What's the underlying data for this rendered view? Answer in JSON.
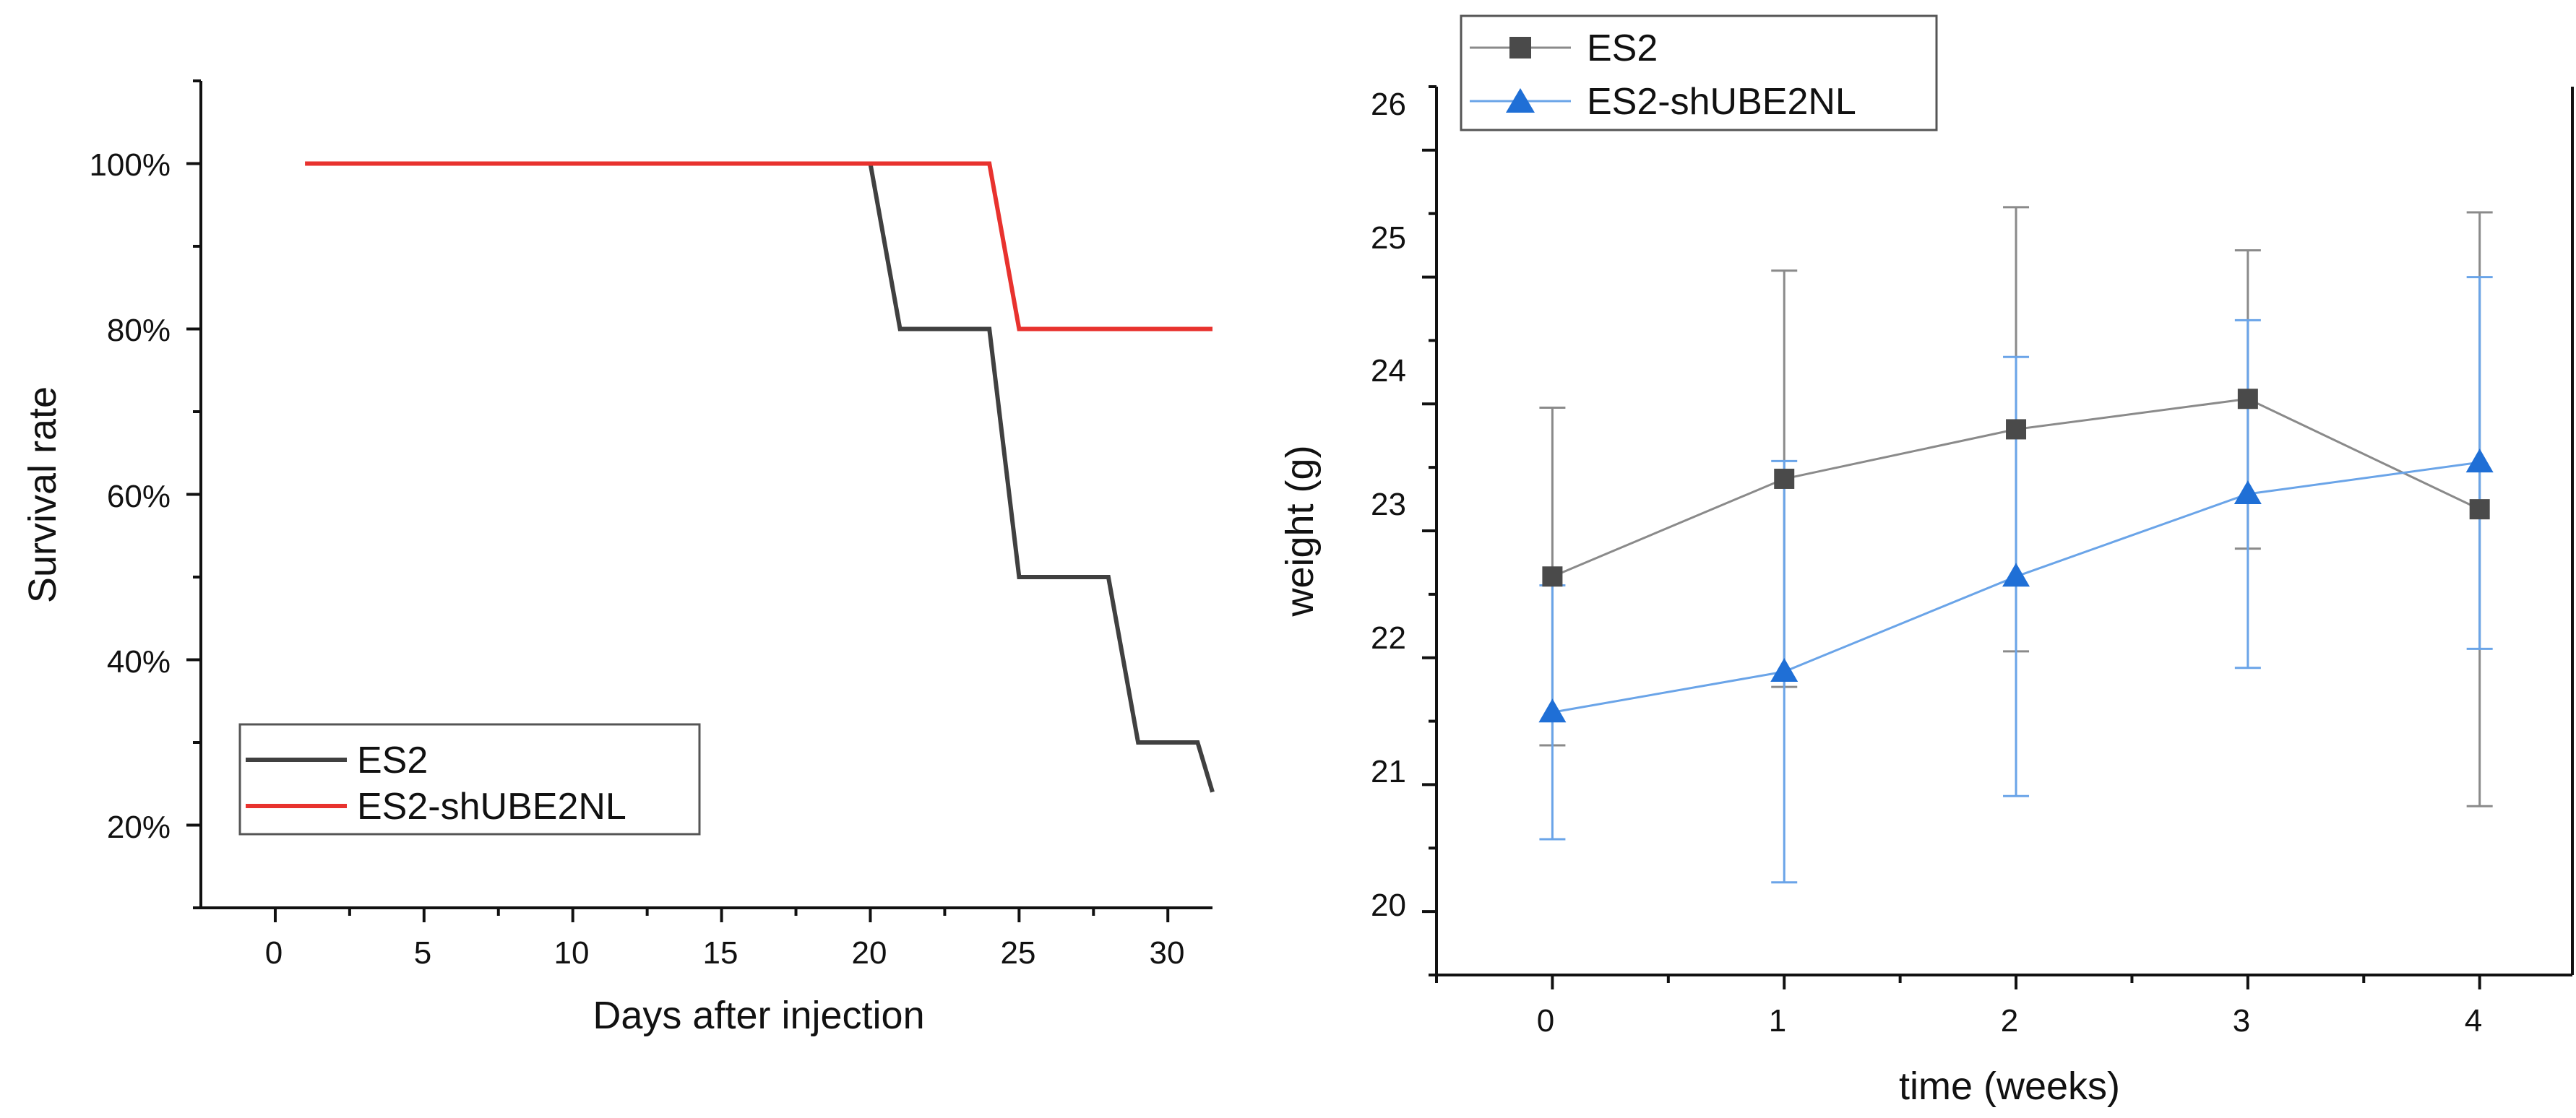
{
  "chart_data": [
    {
      "type": "line",
      "title": "",
      "xlabel": "Days after injection",
      "ylabel": "Survival rate",
      "xlim": [
        -2.5,
        31.5
      ],
      "ylim": [
        0.1,
        1.1
      ],
      "xticks": [
        0,
        5,
        10,
        15,
        20,
        25,
        30
      ],
      "xtick_labels": [
        "0",
        "5",
        "10",
        "15",
        "20",
        "25",
        "30"
      ],
      "yticks": [
        0.2,
        0.4,
        0.6,
        0.8,
        1.0
      ],
      "ytick_labels": [
        "20%",
        "40%",
        "60%",
        "80%",
        "100%"
      ],
      "grid": false,
      "legend": "bottom-left",
      "series": [
        {
          "name": "ES2",
          "color": "#404040",
          "x": [
            20,
            21,
            24,
            25,
            28,
            29,
            31,
            31.5
          ],
          "y": [
            1.0,
            0.8,
            0.8,
            0.5,
            0.5,
            0.3,
            0.3,
            0.24
          ]
        },
        {
          "name": "ES2-shUBE2NL",
          "color": "#e8322e",
          "x": [
            1,
            24,
            25,
            31.5
          ],
          "y": [
            1.0,
            1.0,
            0.8,
            0.8
          ]
        }
      ]
    },
    {
      "type": "line",
      "title": "",
      "xlabel": "time (weeks)",
      "ylabel": "weight (g)",
      "xlim": [
        -0.5,
        4.4
      ],
      "ylim": [
        19.5,
        26.5
      ],
      "xticks": [
        0,
        1,
        2,
        3,
        4
      ],
      "xtick_labels": [
        "0",
        "1",
        "2",
        "3",
        "4"
      ],
      "yticks": [
        20,
        21,
        22,
        23,
        24,
        25,
        26
      ],
      "ytick_labels": [
        "20",
        "21",
        "22",
        "23",
        "24",
        "25",
        "26"
      ],
      "grid": false,
      "legend": "top-left",
      "series": [
        {
          "name": "ES2",
          "color": "#4a4a4a",
          "line_color": "#8a8a8a",
          "marker": "square",
          "x": [
            0,
            1,
            2,
            3,
            4
          ],
          "y": [
            22.64,
            23.41,
            23.8,
            24.04,
            23.17
          ],
          "err_lo": [
            21.31,
            21.77,
            22.05,
            22.86,
            20.83
          ],
          "err_hi": [
            23.97,
            25.05,
            25.55,
            25.21,
            25.51
          ]
        },
        {
          "name": "ES2-shUBE2NL",
          "color": "#1f6fd6",
          "line_color": "#6aa4e8",
          "marker": "triangle",
          "x": [
            0,
            1,
            2,
            3,
            4
          ],
          "y": [
            21.57,
            21.89,
            22.64,
            23.29,
            23.54
          ],
          "err_lo": [
            20.57,
            20.23,
            20.91,
            21.92,
            22.07
          ],
          "err_hi": [
            22.57,
            23.55,
            24.37,
            24.66,
            25.0
          ]
        }
      ]
    }
  ]
}
